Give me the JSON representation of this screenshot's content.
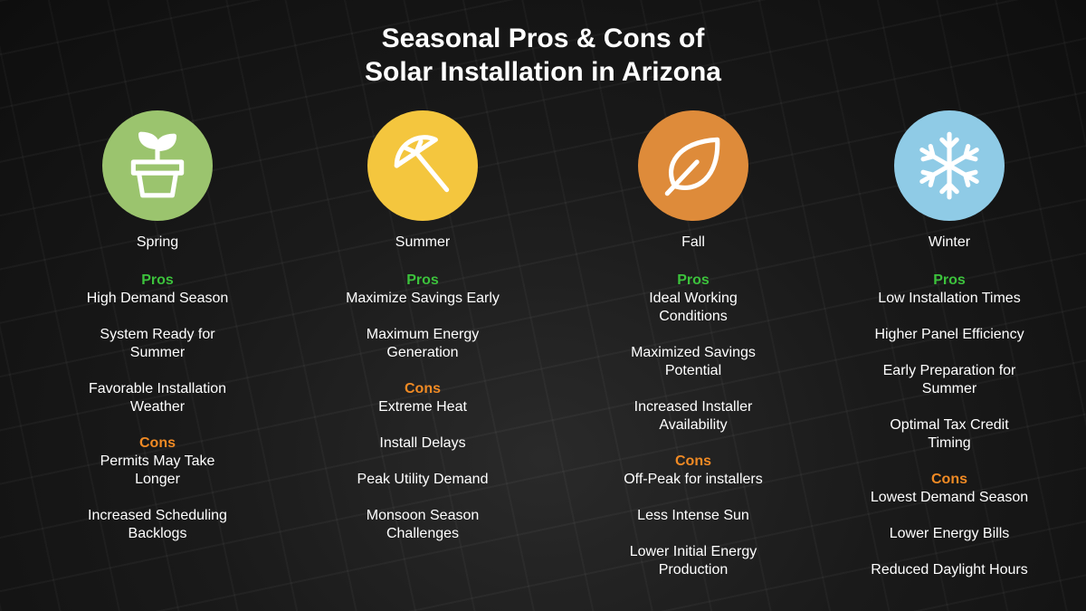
{
  "title_line1": "Seasonal Pros & Cons of",
  "title_line2": "Solar Installation in Arizona",
  "seasons": [
    {
      "name": "Spring",
      "icon": "plant-pot-icon",
      "color": "#9bc46e",
      "pros_label": "Pros",
      "pros": [
        "High Demand Season",
        "System Ready for Summer",
        "Favorable Installation Weather"
      ],
      "cons_label": "Cons",
      "cons": [
        "Permits May Take Longer",
        "Increased Scheduling Backlogs"
      ]
    },
    {
      "name": "Summer",
      "icon": "beach-umbrella-icon",
      "color": "#f4c63e",
      "pros_label": "Pros",
      "pros": [
        "Maximize Savings Early",
        "Maximum Energy Generation"
      ],
      "cons_label": "Cons",
      "cons": [
        "Extreme Heat",
        "Install Delays",
        "Peak Utility Demand",
        "Monsoon Season Challenges"
      ]
    },
    {
      "name": "Fall",
      "icon": "leaf-icon",
      "color": "#de8b3a",
      "pros_label": "Pros",
      "pros": [
        "Ideal Working Conditions",
        "Maximized Savings Potential",
        "Increased Installer Availability"
      ],
      "cons_label": "Cons",
      "cons": [
        "Off-Peak for installers",
        "Less Intense Sun",
        "Lower Initial Energy Production"
      ]
    },
    {
      "name": "Winter",
      "icon": "snowflake-icon",
      "color": "#8fcbe6",
      "pros_label": "Pros",
      "pros": [
        "Low Installation Times",
        "Higher Panel Efficiency",
        "Early Preparation for Summer",
        "Optimal Tax Credit Timing"
      ],
      "cons_label": "Cons",
      "cons": [
        "Lowest Demand Season",
        "Lower Energy Bills",
        "Reduced Daylight Hours"
      ]
    }
  ]
}
